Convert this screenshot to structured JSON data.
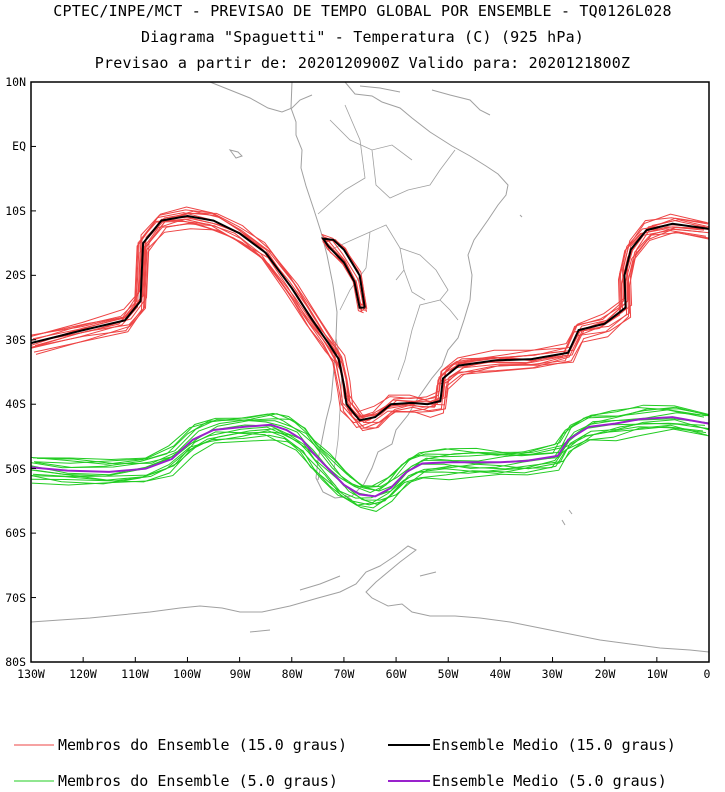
{
  "header": {
    "line1": "CPTEC/INPE/MCT - PREVISAO DE TEMPO GLOBAL POR ENSEMBLE - TQ0126L028",
    "line2": "Diagrama \"Spaguetti\" - Temperatura (C) (925 hPa)",
    "line3": "Previsao a partir de: 2020120900Z  Valido para: 2020121800Z"
  },
  "axes": {
    "lat_labels": [
      "10N",
      "EQ",
      "10S",
      "20S",
      "30S",
      "40S",
      "50S",
      "60S",
      "70S",
      "80S"
    ],
    "lon_labels": [
      "130W",
      "120W",
      "110W",
      "100W",
      "90W",
      "80W",
      "70W",
      "60W",
      "50W",
      "40W",
      "30W",
      "20W",
      "10W",
      "0"
    ]
  },
  "colors": {
    "members_15": "#ee4444",
    "mean_15": "#000000",
    "members_5": "#22cc22",
    "mean_5": "#9922cc",
    "coast": "#a0a0a0"
  },
  "legend": {
    "members_15": "Membros do Ensemble (15.0 graus)",
    "mean_15": "Ensemble Medio (15.0 graus)",
    "members_5": "Membros do Ensemble (5.0 graus)",
    "mean_5": "Ensemble Medio (5.0 graus)"
  },
  "isolines": {
    "mean_15": [
      [
        -130,
        -30.5
      ],
      [
        -120,
        -28.5
      ],
      [
        -112,
        -27
      ],
      [
        -109,
        -24
      ],
      [
        -108.5,
        -15
      ],
      [
        -105,
        -11.5
      ],
      [
        -100,
        -10.8
      ],
      [
        -95,
        -11.5
      ],
      [
        -90,
        -13.5
      ],
      [
        -85,
        -16.5
      ],
      [
        -80,
        -22
      ],
      [
        -76,
        -27
      ],
      [
        -73,
        -30.5
      ],
      [
        -71,
        -33
      ],
      [
        -70,
        -37
      ],
      [
        -69.5,
        -40
      ],
      [
        -67,
        -42.5
      ],
      [
        -64,
        -42
      ],
      [
        -61,
        -40
      ],
      [
        -57,
        -39.8
      ],
      [
        -54,
        -40
      ],
      [
        -51.5,
        -39.5
      ],
      [
        -51,
        -36
      ],
      [
        -48,
        -34
      ],
      [
        -41,
        -33.2
      ],
      [
        -34,
        -33
      ],
      [
        -27,
        -32
      ],
      [
        -25,
        -28.5
      ],
      [
        -20,
        -27.5
      ],
      [
        -16,
        -25
      ],
      [
        -16.2,
        -20
      ],
      [
        -15,
        -16
      ],
      [
        -12,
        -13
      ],
      [
        -7,
        -12
      ],
      [
        0,
        -12.8
      ]
    ],
    "mean_15_island": [
      [
        -66,
        -25
      ],
      [
        -67,
        -20
      ],
      [
        -70,
        -16
      ],
      [
        -72,
        -14.5
      ],
      [
        -74,
        -14.3
      ],
      [
        -73,
        -15.5
      ],
      [
        -70,
        -18
      ],
      [
        -68,
        -21
      ],
      [
        -67,
        -25
      ],
      [
        -66,
        -25
      ]
    ],
    "mean_5": [
      [
        -130,
        -49.8
      ],
      [
        -123,
        -50.3
      ],
      [
        -115,
        -50.5
      ],
      [
        -108,
        -50
      ],
      [
        -103,
        -48.5
      ],
      [
        -99,
        -45.5
      ],
      [
        -95,
        -44
      ],
      [
        -89,
        -43.5
      ],
      [
        -84,
        -43.2
      ],
      [
        -81,
        -44
      ],
      [
        -78,
        -45.5
      ],
      [
        -76,
        -47.5
      ],
      [
        -73,
        -50
      ],
      [
        -70,
        -52.5
      ],
      [
        -67,
        -54
      ],
      [
        -64,
        -54.3
      ],
      [
        -61,
        -53
      ],
      [
        -58,
        -50.5
      ],
      [
        -55,
        -49.2
      ],
      [
        -50,
        -49
      ],
      [
        -45,
        -49
      ],
      [
        -40,
        -49
      ],
      [
        -35,
        -48.8
      ],
      [
        -29,
        -48
      ],
      [
        -27,
        -45.5
      ],
      [
        -23,
        -43.5
      ],
      [
        -18,
        -43
      ],
      [
        -13,
        -42.3
      ],
      [
        -7,
        -42
      ],
      [
        0,
        -43
      ]
    ]
  }
}
